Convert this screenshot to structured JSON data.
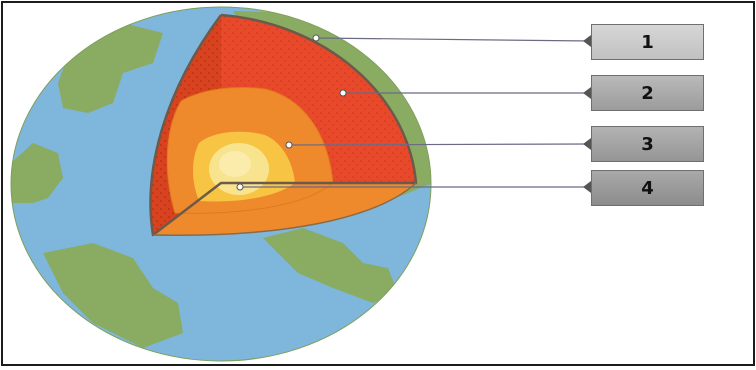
{
  "labels": [
    "1",
    "2",
    "3",
    "4"
  ],
  "colors": {
    "ocean": "#7fb6dc",
    "land": "#8aab62",
    "crust": "#e8492a",
    "mantle": "#ef8a2c",
    "outer_core": "#f7b63c",
    "inner_core": "#f8e48e"
  }
}
